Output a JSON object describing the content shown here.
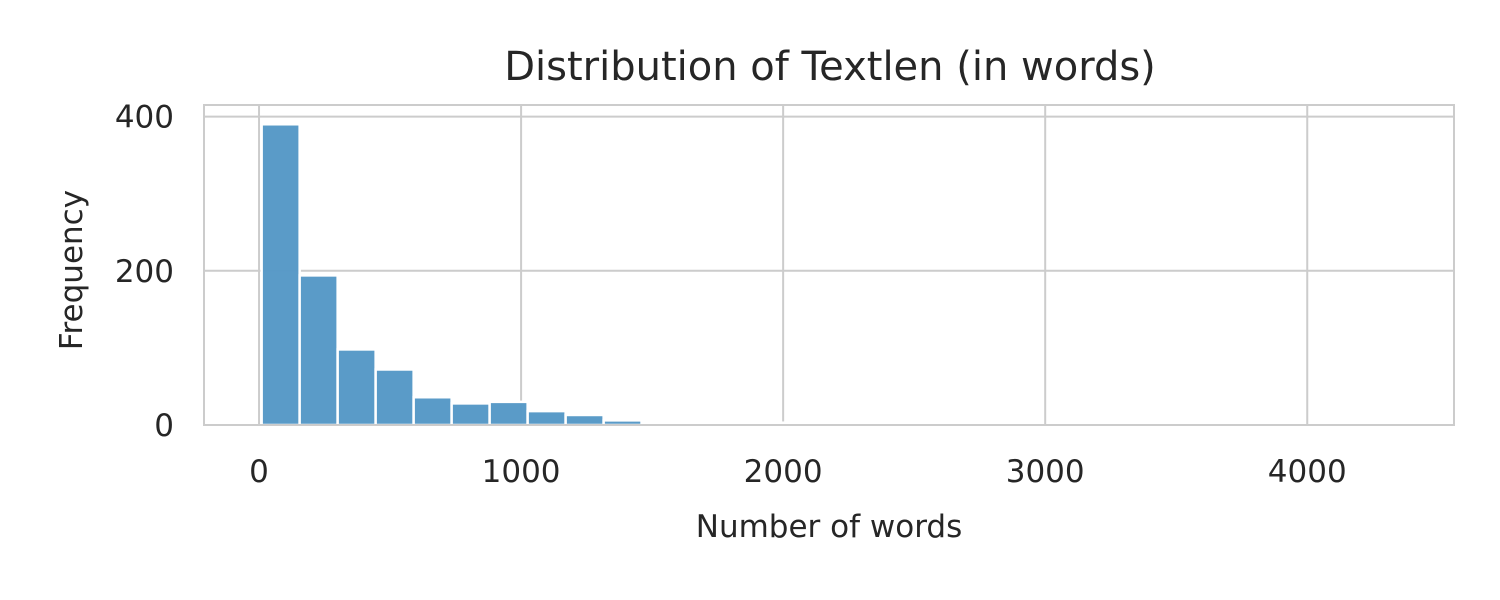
{
  "chart_data": {
    "type": "bar",
    "title": "Distribution of Textlen (in words)",
    "xlabel": "Number of words",
    "ylabel": "Frequency",
    "xlim": [
      -210,
      4560
    ],
    "ylim": [
      0,
      415
    ],
    "xticks": [
      0,
      1000,
      2000,
      3000,
      4000
    ],
    "yticks": [
      0,
      200,
      400
    ],
    "grid": true,
    "bar_color": "#5799c7",
    "bin_width": 145,
    "bins": [
      {
        "x0": 10,
        "count": 390
      },
      {
        "x0": 155,
        "count": 194
      },
      {
        "x0": 300,
        "count": 98
      },
      {
        "x0": 445,
        "count": 72
      },
      {
        "x0": 590,
        "count": 36
      },
      {
        "x0": 735,
        "count": 28
      },
      {
        "x0": 880,
        "count": 30
      },
      {
        "x0": 1025,
        "count": 18
      },
      {
        "x0": 1170,
        "count": 13
      },
      {
        "x0": 1315,
        "count": 6
      },
      {
        "x0": 1460,
        "count": 3
      },
      {
        "x0": 1605,
        "count": 3
      },
      {
        "x0": 1750,
        "count": 1
      },
      {
        "x0": 1895,
        "count": 3
      },
      {
        "x0": 2040,
        "count": 0
      },
      {
        "x0": 2185,
        "count": 1
      },
      {
        "x0": 2330,
        "count": 0
      },
      {
        "x0": 2475,
        "count": 1
      },
      {
        "x0": 2620,
        "count": 0
      },
      {
        "x0": 2765,
        "count": 1
      },
      {
        "x0": 2910,
        "count": 0
      },
      {
        "x0": 3055,
        "count": 0
      },
      {
        "x0": 3200,
        "count": 0
      },
      {
        "x0": 3345,
        "count": 0
      },
      {
        "x0": 3490,
        "count": 0
      },
      {
        "x0": 3635,
        "count": 0
      },
      {
        "x0": 3780,
        "count": 0
      },
      {
        "x0": 3925,
        "count": 0
      },
      {
        "x0": 4070,
        "count": 0
      },
      {
        "x0": 4215,
        "count": 1
      }
    ]
  }
}
